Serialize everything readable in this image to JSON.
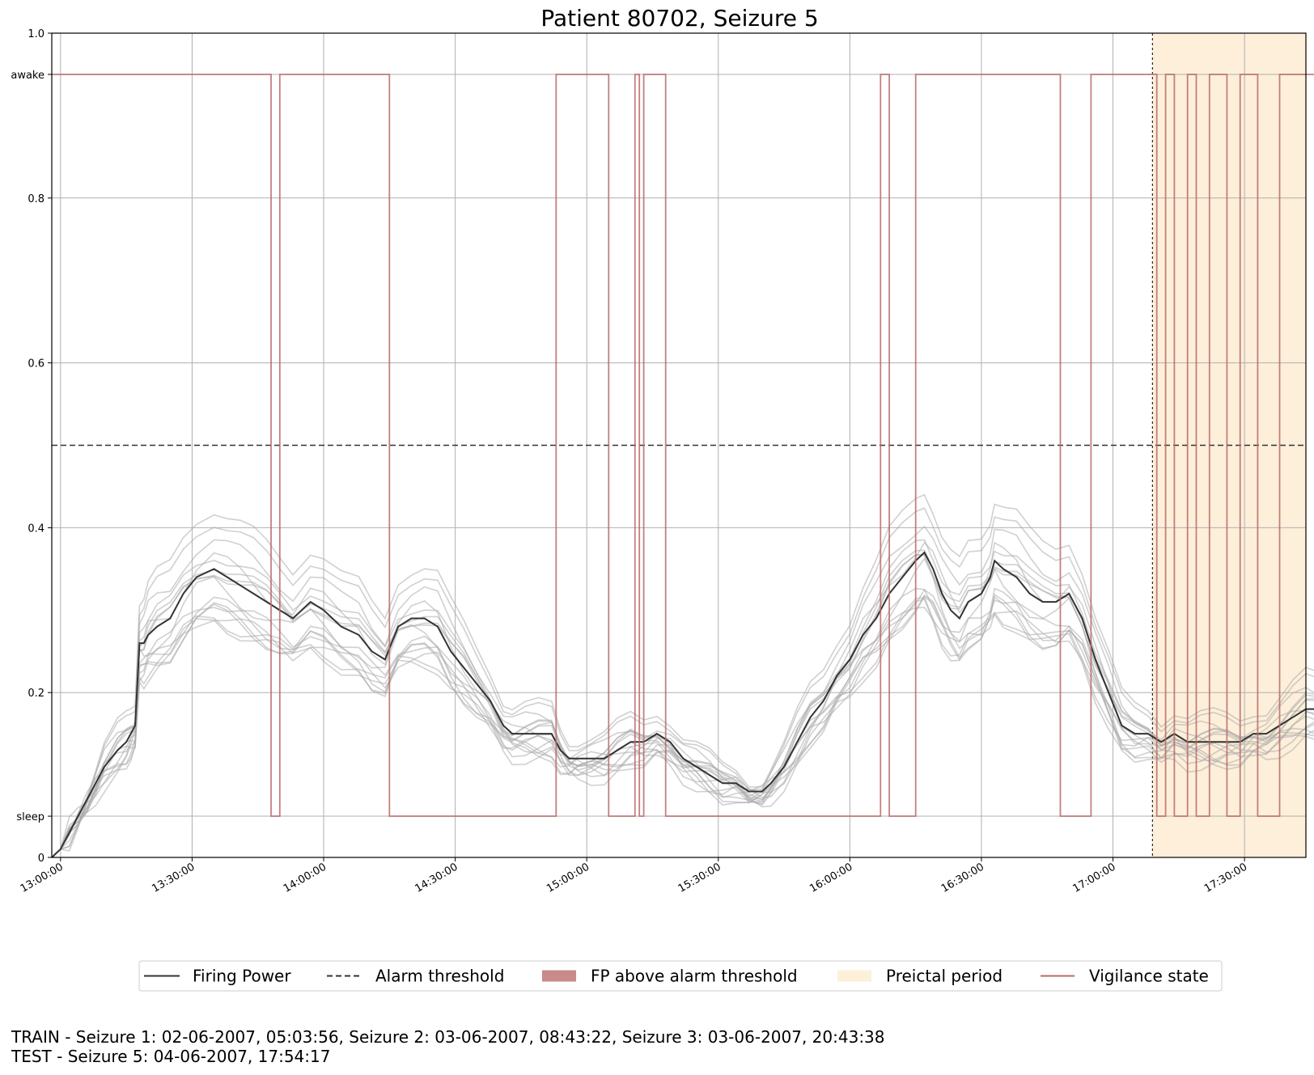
{
  "chart_data": {
    "type": "line",
    "title": "Patient 80702, Seizure 5",
    "xlabel": "",
    "ylabel": "",
    "x_ticks": [
      "13:00:00",
      "13:30:00",
      "14:00:00",
      "14:30:00",
      "15:00:00",
      "15:30:00",
      "16:00:00",
      "16:30:00",
      "17:00:00",
      "17:30:00"
    ],
    "x_range_minutes": [
      -2,
      284
    ],
    "y_ticks": [
      {
        "value": 0,
        "label": "0"
      },
      {
        "value": 0.05,
        "label": "sleep"
      },
      {
        "value": 0.2,
        "label": "0.2"
      },
      {
        "value": 0.4,
        "label": "0.4"
      },
      {
        "value": 0.6,
        "label": "0.6"
      },
      {
        "value": 0.8,
        "label": "0.8"
      },
      {
        "value": 0.95,
        "label": "awake"
      },
      {
        "value": 1.0,
        "label": "1.0"
      }
    ],
    "ylim": [
      0,
      1.0
    ],
    "grid": true,
    "alarm_threshold": 0.5,
    "preictal_period_start": "17:09:00",
    "preictal_period_end": "17:54:17",
    "colors": {
      "firing_power": "#333333",
      "firing_power_runs": "#aaaaaa",
      "threshold": "#333333",
      "fp_above": "#c98a8a",
      "preictal": "#fdefd9",
      "vigilance": "#b86a6a"
    },
    "series": [
      {
        "name": "Firing Power",
        "x": [
          "12:58",
          "13:00",
          "13:02",
          "13:04",
          "13:06",
          "13:08",
          "13:10",
          "13:13",
          "13:15",
          "13:16",
          "13:17",
          "13:18",
          "13:19",
          "13:20",
          "13:22",
          "13:25",
          "13:28",
          "13:31",
          "13:35",
          "13:38",
          "13:41",
          "13:44",
          "13:47",
          "13:50",
          "13:53",
          "13:57",
          "14:00",
          "14:04",
          "14:08",
          "14:11",
          "14:14",
          "14:17",
          "14:20",
          "14:23",
          "14:26",
          "14:29",
          "14:32",
          "14:35",
          "14:38",
          "14:41",
          "14:43",
          "14:46",
          "14:49",
          "14:52",
          "14:54",
          "14:56",
          "14:58",
          "15:01",
          "15:04",
          "15:07",
          "15:10",
          "15:13",
          "15:16",
          "15:19",
          "15:22",
          "15:25",
          "15:28",
          "15:31",
          "15:34",
          "15:37",
          "15:40",
          "15:42",
          "15:45",
          "15:48",
          "15:51",
          "15:54",
          "15:57",
          "16:00",
          "16:03",
          "16:06",
          "16:09",
          "16:12",
          "16:15",
          "16:17",
          "16:19",
          "16:21",
          "16:23",
          "16:25",
          "16:27",
          "16:30",
          "16:32",
          "16:33",
          "16:35",
          "16:38",
          "16:41",
          "16:44",
          "16:47",
          "16:50",
          "16:53",
          "16:56",
          "16:59",
          "17:02",
          "17:05",
          "17:08",
          "17:11",
          "17:14",
          "17:17",
          "17:20",
          "17:23",
          "17:26",
          "17:29",
          "17:32",
          "17:35",
          "17:38",
          "17:41",
          "17:44",
          "17:47",
          "17:50",
          "17:53",
          "17:54"
        ],
        "y": [
          0.0,
          0.01,
          0.03,
          0.05,
          0.07,
          0.09,
          0.11,
          0.13,
          0.14,
          0.15,
          0.16,
          0.26,
          0.26,
          0.27,
          0.28,
          0.29,
          0.32,
          0.34,
          0.35,
          0.34,
          0.33,
          0.32,
          0.31,
          0.3,
          0.29,
          0.31,
          0.3,
          0.28,
          0.27,
          0.25,
          0.24,
          0.28,
          0.29,
          0.29,
          0.28,
          0.25,
          0.23,
          0.21,
          0.19,
          0.16,
          0.15,
          0.15,
          0.15,
          0.15,
          0.13,
          0.12,
          0.12,
          0.12,
          0.12,
          0.13,
          0.14,
          0.14,
          0.15,
          0.14,
          0.12,
          0.11,
          0.1,
          0.09,
          0.09,
          0.08,
          0.08,
          0.09,
          0.11,
          0.14,
          0.17,
          0.19,
          0.22,
          0.24,
          0.27,
          0.29,
          0.32,
          0.34,
          0.36,
          0.37,
          0.35,
          0.32,
          0.3,
          0.29,
          0.31,
          0.32,
          0.34,
          0.36,
          0.35,
          0.34,
          0.32,
          0.31,
          0.31,
          0.32,
          0.29,
          0.24,
          0.2,
          0.16,
          0.15,
          0.15,
          0.14,
          0.15,
          0.14,
          0.14,
          0.14,
          0.14,
          0.14,
          0.15,
          0.15,
          0.16,
          0.17,
          0.18,
          0.18,
          0.19,
          0.18,
          0.17
        ]
      },
      {
        "name": "Vigilance state",
        "x": [
          "12:58",
          "13:48",
          "13:48",
          "13:49",
          "13:49",
          "13:50",
          "13:50",
          "14:15",
          "14:15",
          "14:53",
          "14:53",
          "14:57",
          "14:57",
          "15:05",
          "15:05",
          "15:11",
          "15:11",
          "15:12",
          "15:12",
          "15:13",
          "15:13",
          "15:18",
          "15:18",
          "16:07",
          "16:07",
          "16:09",
          "16:09",
          "16:15",
          "16:15",
          "16:48",
          "16:48",
          "16:55",
          "16:55",
          "17:07",
          "17:07",
          "17:10",
          "17:10",
          "17:12",
          "17:12",
          "17:14",
          "17:14",
          "17:17",
          "17:17",
          "17:19",
          "17:19",
          "17:22",
          "17:22",
          "17:26",
          "17:26",
          "17:29",
          "17:29",
          "17:33",
          "17:33",
          "17:38",
          "17:38",
          "17:43",
          "17:43",
          "17:51",
          "17:51",
          "17:54"
        ],
        "y": [
          0.95,
          0.95,
          0.05,
          0.05,
          0.05,
          0.05,
          0.95,
          0.95,
          0.05,
          0.05,
          0.95,
          0.95,
          0.95,
          0.95,
          0.05,
          0.05,
          0.95,
          0.95,
          0.05,
          0.05,
          0.95,
          0.95,
          0.05,
          0.05,
          0.95,
          0.95,
          0.05,
          0.05,
          0.95,
          0.95,
          0.05,
          0.05,
          0.95,
          0.95,
          0.95,
          0.95,
          0.05,
          0.05,
          0.95,
          0.95,
          0.05,
          0.05,
          0.95,
          0.95,
          0.05,
          0.05,
          0.95,
          0.95,
          0.05,
          0.05,
          0.95,
          0.95,
          0.05,
          0.05,
          0.95,
          0.95,
          0.95,
          0.95,
          0.05,
          0.05
        ]
      }
    ],
    "legend": {
      "placement": "bottom",
      "entries": [
        {
          "label": "Firing Power",
          "style": "solid-line"
        },
        {
          "label": "Alarm threshold",
          "style": "dashed-line"
        },
        {
          "label": "FP above alarm threshold",
          "style": "patch-fp"
        },
        {
          "label": "Preictal period",
          "style": "patch-preictal"
        },
        {
          "label": "Vigilance state",
          "style": "vigilance-line"
        }
      ]
    }
  },
  "footer": {
    "train": "TRAIN - Seizure 1: 02-06-2007, 05:03:56, Seizure 2: 03-06-2007, 08:43:22, Seizure 3: 03-06-2007, 20:43:38",
    "test": "TEST - Seizure 5: 04-06-2007, 17:54:17"
  }
}
